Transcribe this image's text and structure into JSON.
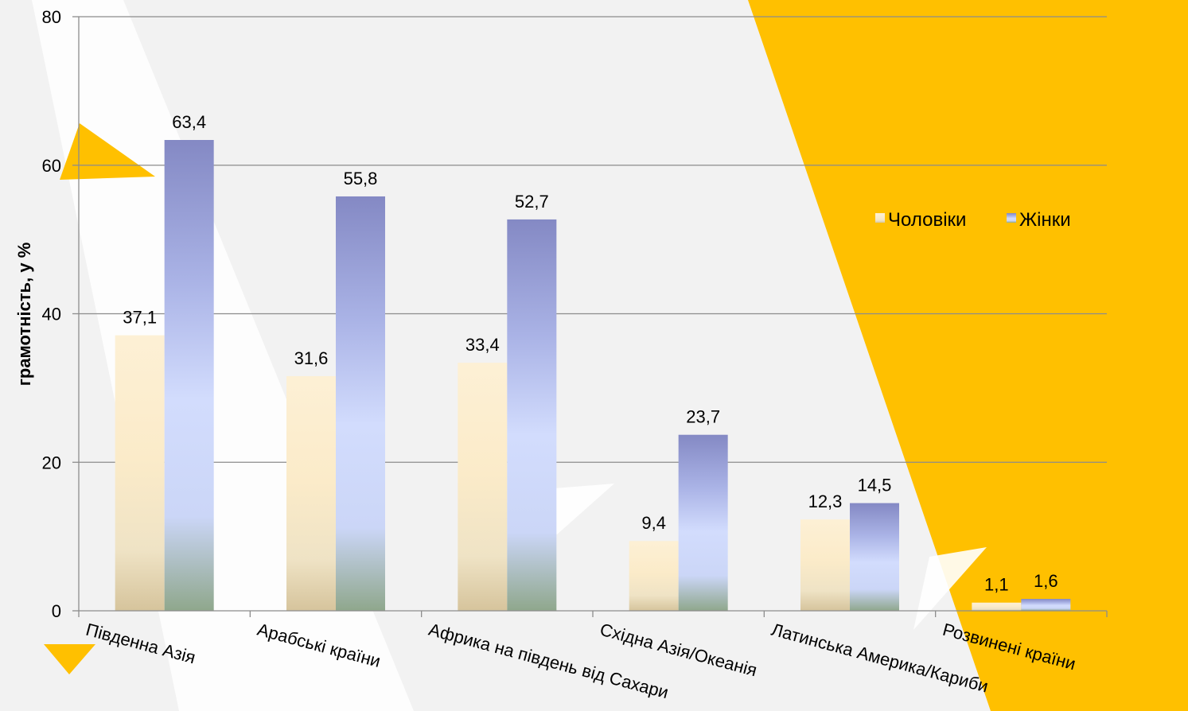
{
  "chart_data": {
    "type": "bar",
    "title": "",
    "xlabel": "",
    "ylabel": "грамотність, у %",
    "ylim": [
      0,
      80
    ],
    "yticks": [
      0,
      20,
      40,
      60,
      80
    ],
    "grid": true,
    "legend_position": "right",
    "categories": [
      "Південна Азія",
      "Арабські країни",
      "Африка на південь від Сахари",
      "Східна Азія/Океанія",
      "Латинська Америка/Кариби",
      "Розвинені країни"
    ],
    "series": [
      {
        "name": "Чоловіки",
        "color": "#fbe9c4",
        "values": [
          37.1,
          31.6,
          33.4,
          9.4,
          12.3,
          1.1
        ],
        "labels": [
          "37,1",
          "31,6",
          "33,4",
          "9,4",
          "12,3",
          "1,1"
        ]
      },
      {
        "name": "Жінки",
        "color": "#8f94cc",
        "values": [
          63.4,
          55.8,
          52.7,
          23.7,
          14.5,
          1.6
        ],
        "labels": [
          "63,4",
          "55,8",
          "52,7",
          "23,7",
          "14,5",
          "1,6"
        ]
      }
    ]
  },
  "colors": {
    "accent_yellow": "#ffc000",
    "background": "#f2f2f2",
    "decor_white": "#ffffff",
    "gridline": "#8c8c8c"
  }
}
